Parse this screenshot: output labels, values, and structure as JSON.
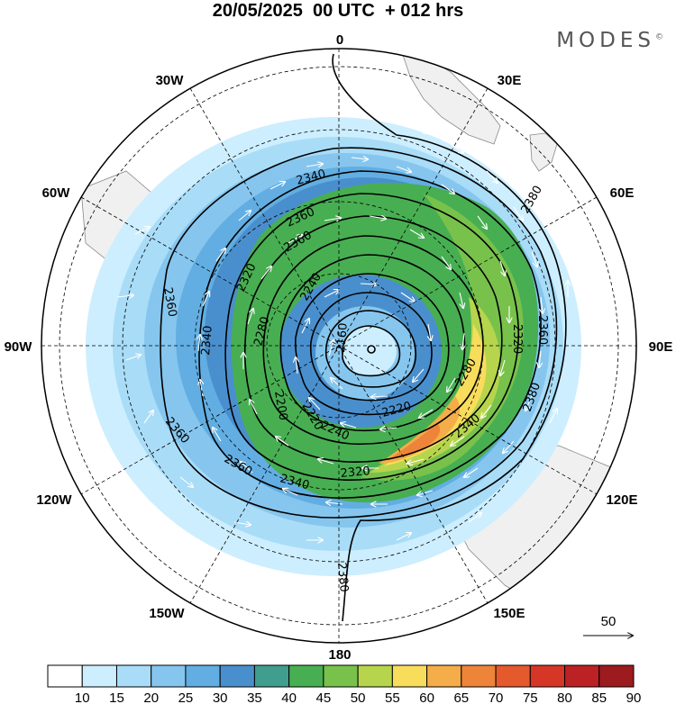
{
  "header": {
    "title": "20/05/2025  00 UTC  + 012 hrs",
    "brand": "MODES",
    "brand_mark": "©"
  },
  "map": {
    "projection": "south-polar-stereographic",
    "longitude_labels": [
      {
        "id": "0",
        "text": "0"
      },
      {
        "id": "30E",
        "text": "30E"
      },
      {
        "id": "60E",
        "text": "60E"
      },
      {
        "id": "90E",
        "text": "90E"
      },
      {
        "id": "120E",
        "text": "120E"
      },
      {
        "id": "150E",
        "text": "150E"
      },
      {
        "id": "180",
        "text": "180"
      },
      {
        "id": "150W",
        "text": "150W"
      },
      {
        "id": "120W",
        "text": "120W"
      },
      {
        "id": "90W",
        "text": "90W"
      },
      {
        "id": "60W",
        "text": "60W"
      },
      {
        "id": "30W",
        "text": "30W"
      }
    ],
    "contour_labels": [
      "2340",
      "2360",
      "2380",
      "2360",
      "2320",
      "2360",
      "2240",
      "2280",
      "2160",
      "2320",
      "2360",
      "2340",
      "2280",
      "2220",
      "2200",
      "2220",
      "2240",
      "2360",
      "2340",
      "2320",
      "2340",
      "2360",
      "2380",
      "2380"
    ],
    "shading_colors": [
      "#ffffff",
      "#cdeefe",
      "#a9dcf7",
      "#86c6ee",
      "#62aee2",
      "#4a8fcd",
      "#3f9e8e",
      "#48ae52",
      "#78c24c",
      "#b6d54c",
      "#f8dc5c",
      "#f4ad48",
      "#ee843a",
      "#e55a2c",
      "#d63626",
      "#bc2124",
      "#9b1b1e"
    ],
    "vector_reference": "50"
  },
  "colorbar": {
    "ticks": [
      "10",
      "15",
      "20",
      "25",
      "30",
      "35",
      "40",
      "45",
      "50",
      "55",
      "60",
      "65",
      "70",
      "75",
      "80",
      "85",
      "90"
    ]
  }
}
